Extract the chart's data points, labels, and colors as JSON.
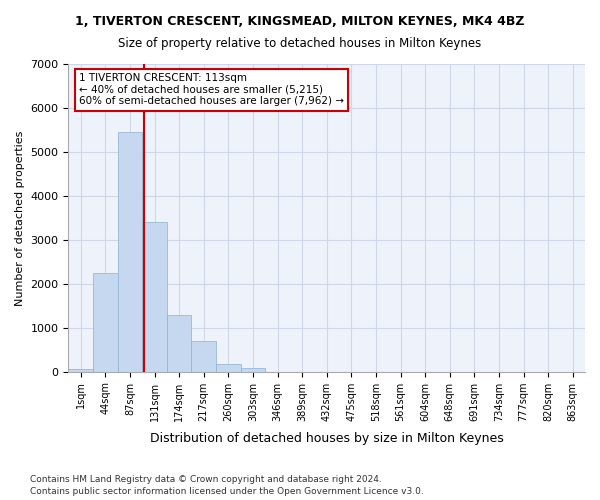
{
  "title": "1, TIVERTON CRESCENT, KINGSMEAD, MILTON KEYNES, MK4 4BZ",
  "subtitle": "Size of property relative to detached houses in Milton Keynes",
  "xlabel": "Distribution of detached houses by size in Milton Keynes",
  "ylabel": "Number of detached properties",
  "footnote1": "Contains HM Land Registry data © Crown copyright and database right 2024.",
  "footnote2": "Contains public sector information licensed under the Open Government Licence v3.0.",
  "bar_color": "#c5d8f0",
  "bar_edge_color": "#8ab0d4",
  "grid_color": "#d0d8e8",
  "background_color": "#eef2fa",
  "bin_labels": [
    "1sqm",
    "44sqm",
    "87sqm",
    "131sqm",
    "174sqm",
    "217sqm",
    "260sqm",
    "303sqm",
    "346sqm",
    "389sqm",
    "432sqm",
    "475sqm",
    "518sqm",
    "561sqm",
    "604sqm",
    "648sqm",
    "691sqm",
    "734sqm",
    "777sqm",
    "820sqm",
    "863sqm"
  ],
  "bar_values": [
    50,
    2250,
    5450,
    3400,
    1300,
    700,
    170,
    90,
    0,
    0,
    0,
    0,
    0,
    0,
    0,
    0,
    0,
    0,
    0,
    0,
    0
  ],
  "property_label": "1 TIVERTON CRESCENT: 113sqm",
  "annotation_line1": "← 40% of detached houses are smaller (5,215)",
  "annotation_line2": "60% of semi-detached houses are larger (7,962) →",
  "annotation_box_color": "#ffffff",
  "annotation_border_color": "#cc0000",
  "vline_color": "#cc0000",
  "ylim": [
    0,
    7000
  ],
  "yticks": [
    0,
    1000,
    2000,
    3000,
    4000,
    5000,
    6000,
    7000
  ]
}
